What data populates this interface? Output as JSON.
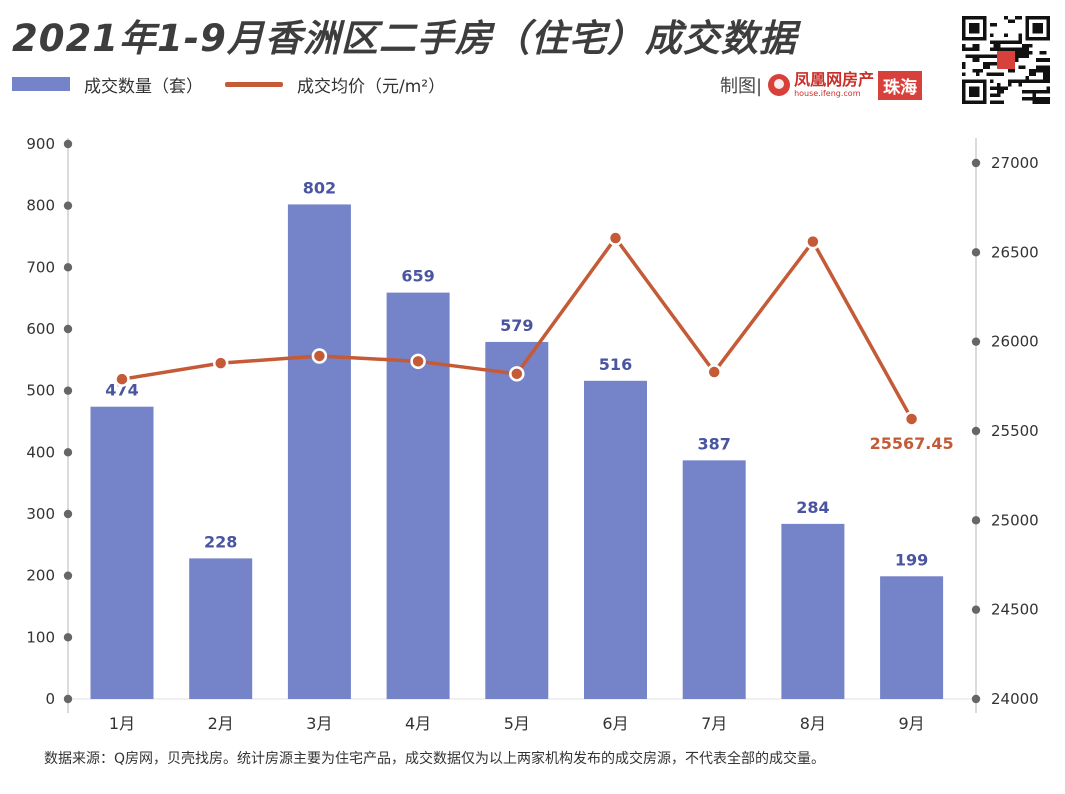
{
  "title": "2021年1-9月香洲区二手房（住宅）成交数据",
  "maker_label": "制图|",
  "logo": {
    "cn": "凤凰网房产",
    "en": "house.ifeng.com",
    "city": "珠海"
  },
  "footer": "数据来源：Q房网，贝壳找房。统计房源主要为住宅产品，成交数据仅为以上两家机构发布的成交房源，不代表全部的成交量。",
  "chart_data": {
    "type": "bar+line",
    "categories": [
      "1月",
      "2月",
      "3月",
      "4月",
      "5月",
      "6月",
      "7月",
      "8月",
      "9月"
    ],
    "series": [
      {
        "name": "成交数量（套）",
        "type": "bar",
        "axis": "left",
        "color": "#7583c9",
        "values": [
          474,
          228,
          802,
          659,
          579,
          516,
          387,
          284,
          199
        ],
        "labels": [
          "474",
          "228",
          "802",
          "659",
          "579",
          "516",
          "387",
          "284",
          "199"
        ]
      },
      {
        "name": "成交均价（元/m²）",
        "type": "line",
        "axis": "right",
        "color": "#c55a36",
        "values": [
          25790,
          25880,
          25920,
          25890,
          25820,
          26580,
          25830,
          26560,
          25567.45
        ],
        "last_label": "25567.45"
      }
    ],
    "y_left": {
      "ylim": [
        0,
        900
      ],
      "ticks": [
        "0",
        "100",
        "200",
        "300",
        "400",
        "500",
        "600",
        "700",
        "800",
        "900"
      ]
    },
    "y_right": {
      "ylim": [
        24000,
        27000
      ],
      "ticks": [
        "24000",
        "24500",
        "25000",
        "25500",
        "26000",
        "26500",
        "27000"
      ]
    },
    "grid": false,
    "legend_position": "top-left"
  }
}
